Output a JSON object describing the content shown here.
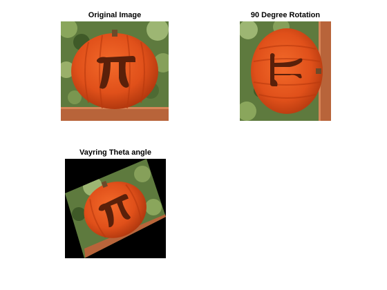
{
  "figure": {
    "panels": [
      {
        "title": "Original Image",
        "image": "pumpkin-pi-photo"
      },
      {
        "title": "90 Degree Rotation",
        "image": "pumpkin-pi-photo-rotated-90"
      },
      {
        "title": "Vayring Theta angle",
        "image": "pumpkin-pi-photo-rotated-theta"
      }
    ]
  },
  "colors": {
    "background": "#ffffff",
    "pumpkin": "#e0501a",
    "pumpkin_dark": "#b8380e",
    "foliage": "#6f8f4a",
    "wood": "#b8643a",
    "padding": "#000000"
  }
}
